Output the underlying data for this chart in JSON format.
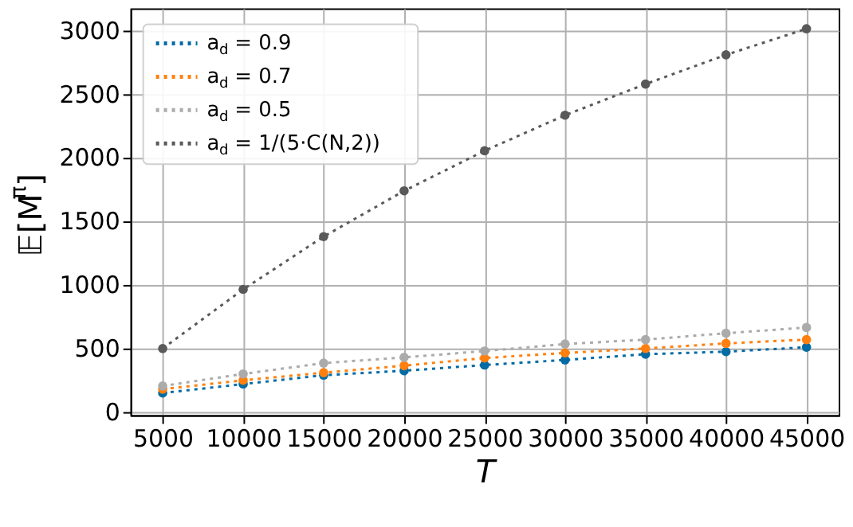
{
  "chart_data": {
    "type": "line",
    "xlabel": "T",
    "ylabel": "𝔼[M$^{π}$]",
    "x": [
      5000,
      10000,
      15000,
      20000,
      25000,
      30000,
      35000,
      40000,
      45000
    ],
    "series": [
      {
        "name": "a$_{d}$ = 0.9",
        "color": "#006ba4",
        "values": [
          145,
          215,
          285,
          320,
          365,
          405,
          450,
          470,
          505
        ]
      },
      {
        "name": "a$_{d}$ = 0.7",
        "color": "#ff800e",
        "values": [
          175,
          245,
          305,
          360,
          420,
          460,
          495,
          535,
          565
        ]
      },
      {
        "name": "a$_{d}$ = 0.5",
        "color": "#ababab",
        "values": [
          200,
          295,
          380,
          425,
          475,
          530,
          565,
          615,
          660
        ]
      },
      {
        "name": "a$_{d}$ = 1/(5·C(N,2))",
        "color": "#595959",
        "values": [
          495,
          960,
          1375,
          1735,
          2050,
          2330,
          2575,
          2805,
          3010
        ]
      }
    ],
    "xlim": [
      3000,
      47000
    ],
    "ylim": [
      -30,
      3170
    ],
    "xticks": [
      5000,
      10000,
      15000,
      20000,
      25000,
      30000,
      35000,
      40000,
      45000
    ],
    "yticks": [
      0,
      500,
      1000,
      1500,
      2000,
      2500,
      3000
    ],
    "grid": true,
    "legend": "top left",
    "marker": "circle",
    "line_style": "dotted"
  }
}
